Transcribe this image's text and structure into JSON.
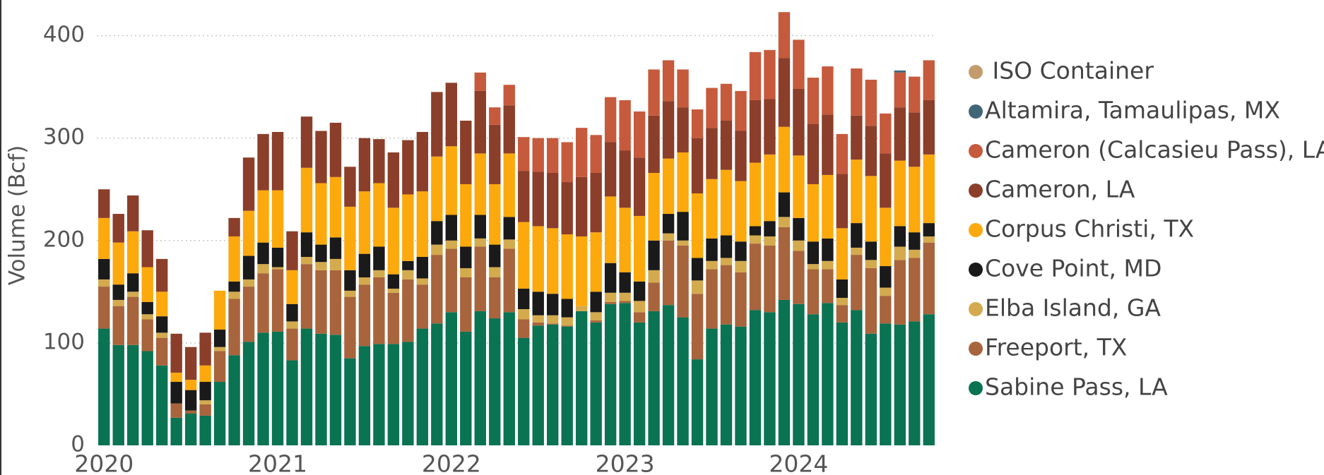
{
  "chart_data": {
    "type": "stacked_bar",
    "y_label": "Volume (Bcf)",
    "categories": [
      "2020",
      null,
      null,
      null,
      null,
      null,
      null,
      null,
      null,
      null,
      null,
      null,
      "2021",
      null,
      null,
      null,
      null,
      null,
      null,
      null,
      null,
      null,
      null,
      null,
      "2022",
      null,
      null,
      null,
      null,
      null,
      null,
      null,
      null,
      null,
      null,
      null,
      "2023",
      null,
      null,
      null,
      null,
      null,
      null,
      null,
      null,
      null,
      null,
      null,
      "2024",
      null,
      null,
      null,
      null,
      null,
      null,
      null,
      null,
      null
    ],
    "ylim": [
      0,
      430
    ],
    "yticks": [
      0,
      100,
      200,
      300,
      400
    ],
    "grid": true,
    "legend": "right",
    "series": [
      {
        "name": " ISO Container",
        "color": "#c49b6c",
        "values": [
          0,
          0,
          0,
          0,
          0,
          0,
          0,
          0,
          0,
          0,
          0,
          0,
          0,
          0,
          0,
          0,
          0,
          0,
          0,
          0,
          0,
          0,
          0,
          0,
          0,
          0,
          0,
          0,
          0,
          0,
          0,
          0,
          0,
          0,
          0,
          0,
          0,
          0,
          0,
          0,
          0,
          0,
          0,
          0,
          0,
          0,
          0,
          0,
          0,
          0,
          0,
          0,
          0,
          0,
          0,
          0,
          0,
          0
        ]
      },
      {
        "name": "Altamira, Tamaulipas, MX",
        "color": "#3f6577",
        "values": [
          0,
          0,
          0,
          0,
          0,
          0,
          0,
          0,
          0,
          0,
          0,
          0,
          0,
          0,
          0,
          0,
          0,
          0,
          0,
          0,
          0,
          0,
          0,
          0,
          0,
          0,
          0,
          0,
          0,
          0,
          0,
          0,
          0,
          0,
          0,
          0,
          0,
          0,
          0,
          0,
          0,
          0,
          0,
          0,
          0,
          0,
          0,
          0,
          0,
          0,
          0,
          0,
          0,
          0,
          0,
          2,
          0,
          0
        ]
      },
      {
        "name": "Cameron (Calcasieu Pass), LA",
        "color": "#c65a3d",
        "values": [
          0,
          0,
          0,
          0,
          0,
          0,
          0,
          0,
          0,
          0,
          0,
          0,
          0,
          0,
          0,
          0,
          0,
          0,
          0,
          0,
          0,
          0,
          0,
          0,
          0,
          0,
          18,
          17,
          20,
          33,
          33,
          34,
          39,
          48,
          37,
          44,
          49,
          45,
          45,
          40,
          37,
          28,
          39,
          36,
          39,
          47,
          48,
          45,
          48,
          45,
          47,
          39,
          46,
          45,
          39,
          34,
          35,
          39
        ]
      },
      {
        "name": "Cameron, LA",
        "color": "#8b3e2a",
        "values": [
          28,
          28,
          35,
          36,
          32,
          38,
          32,
          32,
          0,
          18,
          52,
          55,
          57,
          38,
          50,
          51,
          53,
          39,
          52,
          43,
          54,
          53,
          58,
          63,
          62,
          62,
          61,
          58,
          47,
          50,
          53,
          54,
          51,
          58,
          58,
          53,
          56,
          57,
          56,
          56,
          44,
          54,
          50,
          48,
          49,
          61,
          54,
          67,
          65,
          59,
          59,
          53,
          43,
          49,
          53,
          52,
          53,
          53
        ]
      },
      {
        "name": "Corpus Christi, TX",
        "color": "#fca90e",
        "values": [
          40,
          41,
          41,
          34,
          24,
          9,
          10,
          16,
          38,
          44,
          44,
          51,
          56,
          33,
          63,
          60,
          59,
          62,
          61,
          62,
          65,
          65,
          64,
          63,
          67,
          61,
          60,
          59,
          62,
          65,
          64,
          64,
          63,
          68,
          58,
          65,
          63,
          64,
          66,
          54,
          58,
          63,
          58,
          64,
          59,
          62,
          65,
          64,
          61,
          56,
          62,
          50,
          62,
          64,
          57,
          64,
          64,
          67
        ]
      },
      {
        "name": "Cove Point, MD",
        "color": "#1a1a1a",
        "values": [
          20,
          15,
          18,
          12,
          16,
          21,
          20,
          18,
          17,
          10,
          23,
          21,
          19,
          17,
          24,
          17,
          21,
          20,
          23,
          23,
          14,
          9,
          21,
          23,
          25,
          21,
          23,
          22,
          22,
          20,
          23,
          21,
          18,
          0,
          20,
          29,
          20,
          19,
          29,
          19,
          28,
          22,
          22,
          22,
          19,
          9,
          15,
          24,
          22,
          22,
          22,
          18,
          24,
          18,
          21,
          20,
          17,
          13
        ]
      },
      {
        "name": "Elba Island, GA",
        "color": "#d4aa4e",
        "values": [
          7,
          6,
          5,
          5,
          5,
          0,
          0,
          4,
          4,
          7,
          7,
          9,
          2,
          7,
          7,
          8,
          11,
          6,
          7,
          7,
          4,
          9,
          6,
          10,
          8,
          9,
          8,
          10,
          9,
          10,
          7,
          8,
          8,
          5,
          8,
          9,
          8,
          11,
          12,
          7,
          5,
          13,
          8,
          7,
          11,
          8,
          9,
          10,
          10,
          5,
          8,
          7,
          7,
          8,
          8,
          13,
          8,
          6
        ]
      },
      {
        "name": "Freeport, TX",
        "color": "#a8643c",
        "values": [
          41,
          38,
          47,
          31,
          27,
          14,
          3,
          11,
          30,
          55,
          54,
          58,
          61,
          31,
          63,
          62,
          63,
          60,
          60,
          65,
          50,
          61,
          43,
          67,
          62,
          53,
          63,
          40,
          62,
          18,
          3,
          1,
          1,
          0,
          2,
          2,
          2,
          10,
          28,
          63,
          70,
          64,
          58,
          58,
          53,
          65,
          65,
          71,
          52,
          44,
          33,
          17,
          54,
          64,
          27,
          63,
          62,
          70
        ]
      },
      {
        "name": "Sabine Pass, LA",
        "color": "#0a7352",
        "values": [
          114,
          98,
          98,
          92,
          78,
          27,
          31,
          29,
          62,
          88,
          101,
          110,
          111,
          83,
          114,
          109,
          108,
          85,
          97,
          99,
          99,
          101,
          114,
          119,
          130,
          111,
          131,
          124,
          130,
          105,
          117,
          118,
          116,
          131,
          120,
          138,
          139,
          120,
          131,
          137,
          125,
          84,
          114,
          118,
          116,
          132,
          130,
          142,
          138,
          128,
          139,
          120,
          132,
          109,
          119,
          118,
          121,
          128
        ]
      }
    ]
  }
}
